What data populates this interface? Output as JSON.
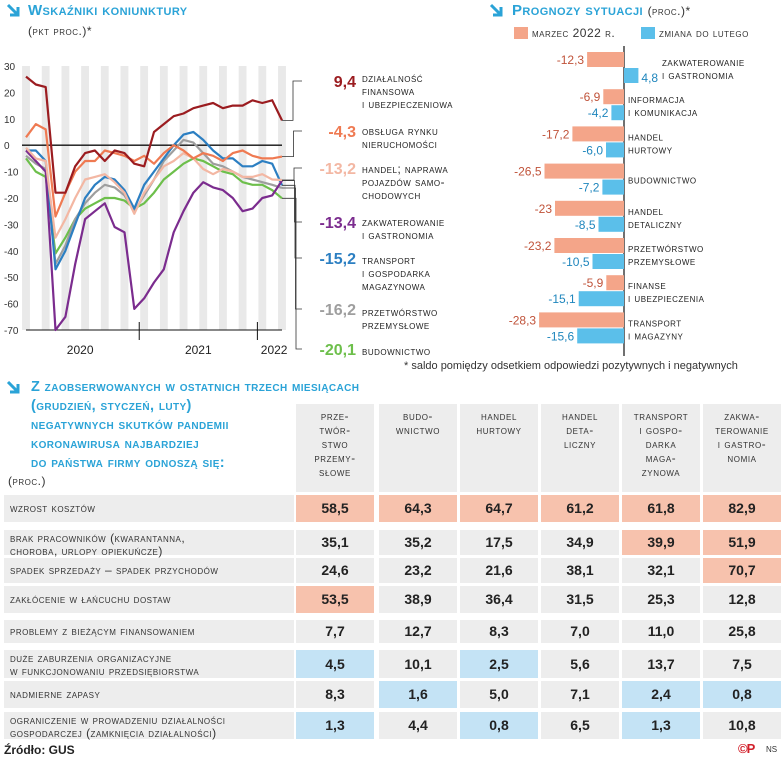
{
  "left_chart": {
    "title": "Wskaźniki koniunktury",
    "unit": "(pkt proc.)*",
    "chart_data": {
      "type": "line",
      "title": "Wskaźniki koniunktury",
      "ylabel": "pkt proc.",
      "ylim": [
        -70,
        30
      ],
      "yticks": [
        "30",
        "20",
        "10",
        "0",
        "-10",
        "-20",
        "-30",
        "-40",
        "-50",
        "-60",
        "-70"
      ],
      "yticks_num": [
        30,
        20,
        10,
        0,
        -10,
        -20,
        -30,
        -40,
        -50,
        -60,
        -70
      ],
      "year_labels": [
        "2020",
        "2021",
        "2022"
      ],
      "months": 27,
      "series": [
        {
          "name": "działalność finansowa i ubezpieczeniowa",
          "end_label": "9,4",
          "color": "#9b1c20",
          "values": [
            26,
            23,
            22,
            -18,
            -18,
            -8,
            -3,
            -2,
            -6,
            -2,
            -3,
            -7,
            -8,
            5,
            8,
            11,
            12,
            14,
            15,
            16,
            14,
            15,
            15,
            17,
            16,
            17,
            9.4
          ]
        },
        {
          "name": "obsługa rynku nieruchomości",
          "end_label": "-4,3",
          "color": "#ef7a52",
          "values": [
            3,
            8,
            6,
            -27,
            -18,
            -10,
            -6,
            -6,
            -2,
            -3,
            -4,
            -6,
            -4,
            -7,
            -3,
            0,
            -2,
            -5,
            -3,
            -4,
            -6,
            -3,
            -2,
            -4,
            -5,
            -5,
            -4.3
          ]
        },
        {
          "name": "handel; naprawa pojazdów samochodowych",
          "end_label": "-13,2",
          "color": "#f3b7a3",
          "values": [
            -1,
            -5,
            -6,
            -35,
            -28,
            -20,
            -13,
            -12,
            -11,
            -14,
            -18,
            -26,
            -18,
            -13,
            -8,
            -6,
            -3,
            -5,
            -9,
            -11,
            -9,
            -10,
            -12,
            -12,
            -11,
            -13,
            -13.2
          ]
        },
        {
          "name": "zakwaterowanie i gastronomia",
          "end_label": "-13,4",
          "color": "#7b2c8e",
          "values": [
            -2,
            -6,
            -10,
            -70,
            -65,
            -45,
            -28,
            -25,
            -22,
            -31,
            -33,
            -62,
            -58,
            -52,
            -47,
            -33,
            -25,
            -18,
            -14,
            -16,
            -17,
            -20,
            -25,
            -24,
            -20,
            -19,
            -13.4
          ]
        },
        {
          "name": "transport i gospodarka magazynowa",
          "end_label": "-15,2",
          "color": "#2c7fc2",
          "values": [
            -2,
            -2,
            -6,
            -47,
            -40,
            -30,
            -20,
            -15,
            -12,
            -13,
            -17,
            -24,
            -15,
            -10,
            -5,
            0,
            4,
            5,
            2,
            -2,
            -5,
            -5,
            -8,
            -8,
            -6,
            -7,
            -15.2
          ]
        },
        {
          "name": "przetwórstwo przemysłowe",
          "end_label": "-16,2",
          "color": "#9e9e9e",
          "values": [
            -4,
            -7,
            -9,
            -45,
            -38,
            -28,
            -22,
            -18,
            -15,
            -16,
            -19,
            -25,
            -19,
            -13,
            -6,
            -2,
            2,
            1,
            -3,
            -7,
            -8,
            -10,
            -12,
            -13,
            -14,
            -15,
            -16.2
          ]
        },
        {
          "name": "budownictwo",
          "end_label": "-20,1",
          "color": "#6dbf4b",
          "values": [
            -5,
            -10,
            -12,
            -41,
            -35,
            -28,
            -24,
            -22,
            -20,
            -20,
            -21,
            -24,
            -22,
            -18,
            -13,
            -10,
            -7,
            -5,
            -6,
            -8,
            -10,
            -11,
            -14,
            -15,
            -15,
            -17,
            -20.1
          ]
        }
      ]
    }
  },
  "right_chart": {
    "title": "Prognozy sytuacji",
    "unit": "(proc.)*",
    "legend": [
      "marzec 2022 r.",
      "zmiana do lutego"
    ],
    "footnote": "* saldo pomiędzy odsetkiem odpowiedzi pozytywnych i negatywnych",
    "colors": {
      "march": "#f4a589",
      "change": "#5bbfea"
    },
    "chart_data": {
      "type": "bar",
      "orientation": "horizontal",
      "title": "Prognozy sytuacji (proc.)",
      "categories": [
        "zakwaterowanie i gastronomia",
        "informacja i komunikacja",
        "handel hurtowy",
        "budownictwo",
        "handel detaliczny",
        "przetwórstwo przemysłowe",
        "finanse i ubezpieczenia",
        "transport i magazyny"
      ],
      "category_lines": [
        [
          "zakwaterowanie",
          "i gastronomia"
        ],
        [
          "informacja",
          "i komunikacja"
        ],
        [
          "handel",
          "hurtowy"
        ],
        [
          "budownictwo"
        ],
        [
          "handel",
          "detaliczny"
        ],
        [
          "przetwórstwo",
          "przemysłowe"
        ],
        [
          "finanse",
          "i ubezpieczenia"
        ],
        [
          "transport",
          "i magazyny"
        ]
      ],
      "series": [
        {
          "name": "marzec 2022 r.",
          "values": [
            -12.3,
            -6.9,
            -17.2,
            -26.5,
            -23,
            -23.2,
            -5.9,
            -28.3
          ],
          "labels": [
            "-12,3",
            "-6,9",
            "-17,2",
            "-26,5",
            "-23",
            "-23,2",
            "-5,9",
            "-28,3"
          ]
        },
        {
          "name": "zmiana do lutego",
          "values": [
            4.8,
            -4.2,
            -6.0,
            -7.2,
            -8.5,
            -10.5,
            -15.1,
            -15.6
          ],
          "labels": [
            "4,8",
            "-4,2",
            "-6,0",
            "-7,2",
            "-8,5",
            "-10,5",
            "-15,1",
            "-15,6"
          ]
        }
      ]
    }
  },
  "table": {
    "title_lines": [
      "Z zaobserwowanych w ostatnich trzech miesiącach",
      "(grudzień, styczeń, luty)",
      "negatywnych skutków pandemii",
      "koronawirusa najbardziej",
      "do państwa firmy odnoszą się:"
    ],
    "unit": "(proc.)",
    "columns": [
      [
        "prze-",
        "twór-",
        "stwo",
        "przemy-",
        "słowe"
      ],
      [
        "budo-",
        "wnictwo"
      ],
      [
        "handel",
        "hurtowy"
      ],
      [
        "handel",
        "deta-",
        "liczny"
      ],
      [
        "transport",
        "i gospo-",
        "darka",
        "maga-",
        "zynowa"
      ],
      [
        "zakwa-",
        "terowanie",
        "i gastro-",
        "nomia"
      ]
    ],
    "rows": [
      {
        "label": [
          "wzrost kosztów"
        ],
        "values": [
          "58,5",
          "64,3",
          "64,7",
          "61,2",
          "61,8",
          "82,9"
        ],
        "hl": [
          "o",
          "o",
          "o",
          "o",
          "o",
          "o"
        ]
      },
      {
        "label": [
          "brak pracowników (kwarantanna,",
          "choroba, urlopy opiekuńcze)"
        ],
        "values": [
          "35,1",
          "35,2",
          "17,5",
          "34,9",
          "39,9",
          "51,9"
        ],
        "hl": [
          "",
          "",
          "",
          "",
          "o",
          "o"
        ]
      },
      {
        "label": [
          "spadek sprzedaży – spadek przychodów"
        ],
        "values": [
          "24,6",
          "23,2",
          "21,6",
          "38,1",
          "32,1",
          "70,7"
        ],
        "hl": [
          "",
          "",
          "",
          "",
          "",
          "o"
        ]
      },
      {
        "label": [
          "zakłócenie w łańcuchu dostaw"
        ],
        "values": [
          "53,5",
          "38,9",
          "36,4",
          "31,5",
          "25,3",
          "12,8"
        ],
        "hl": [
          "o",
          "",
          "",
          "",
          "",
          ""
        ]
      },
      {
        "label": [
          "problemy z bieżącym finansowaniem"
        ],
        "values": [
          "7,7",
          "12,7",
          "8,3",
          "7,0",
          "11,0",
          "25,8"
        ],
        "hl": [
          "",
          "",
          "",
          "",
          "",
          ""
        ]
      },
      {
        "label": [
          "duże zaburzenia organizacyjne",
          "w funkcjonowaniu przedsiębiorstwa"
        ],
        "values": [
          "4,5",
          "10,1",
          "2,5",
          "5,6",
          "13,7",
          "7,5"
        ],
        "hl": [
          "b",
          "",
          "b",
          "",
          "",
          ""
        ]
      },
      {
        "label": [
          "nadmierne zapasy"
        ],
        "values": [
          "8,3",
          "1,6",
          "5,0",
          "7,1",
          "2,4",
          "0,8"
        ],
        "hl": [
          "",
          "b",
          "",
          "",
          "b",
          "b"
        ]
      },
      {
        "label": [
          "ograniczenie w prowadzeniu działalności",
          "gospodarczej (zamknięcia działalności)"
        ],
        "values": [
          "1,3",
          "4,4",
          "0,8",
          "6,5",
          "1,3",
          "10,8"
        ],
        "hl": [
          "b",
          "",
          "b",
          "",
          "b",
          ""
        ]
      }
    ]
  },
  "source": "Źródło: GUS",
  "credit": "NS",
  "logo_text": "©P"
}
